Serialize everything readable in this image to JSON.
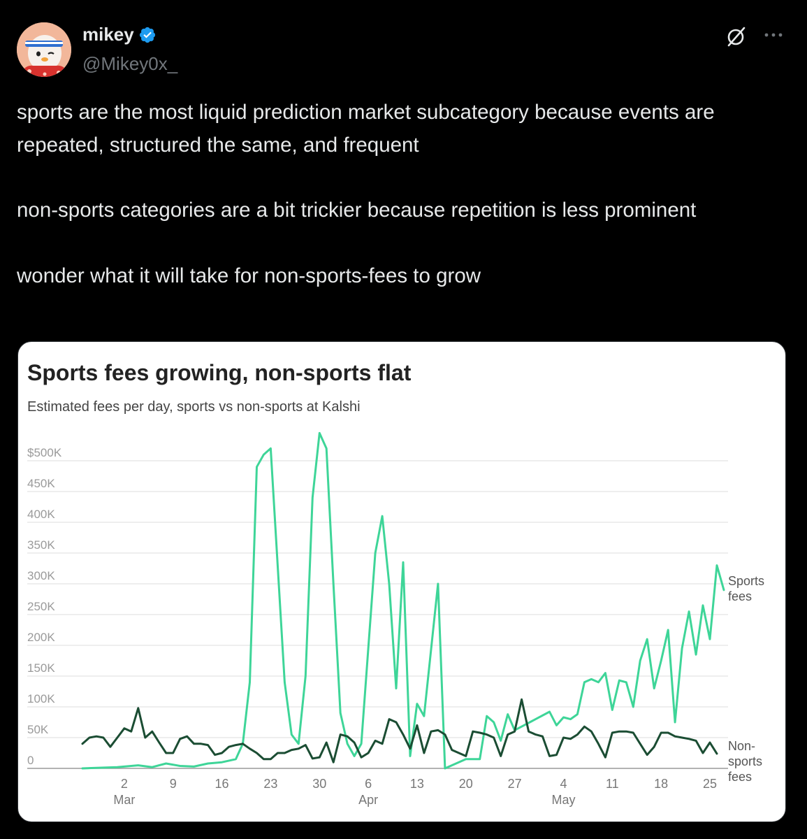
{
  "tweet": {
    "author_name": "mikey",
    "handle": "@Mikey0x_",
    "text": "sports are the most liquid prediction market subcategory because events are repeated, structured the same, and frequent\n\nnon-sports categories are a bit trickier because repetition is less prominent\n\nwonder what it will take for non-sports-fees to grow"
  },
  "icons": {
    "verified": "verified-badge-icon",
    "grok": "grok-icon",
    "more": "more-options-icon"
  },
  "colors": {
    "background": "#000000",
    "text": "#e7e9ea",
    "muted": "#71767b",
    "verified": "#1d9bf0",
    "sports": "#3ed598",
    "non_sports": "#1b4d33"
  },
  "chart_data": {
    "type": "line",
    "title": "Sports fees growing, non-sports flat",
    "subtitle": "Estimated fees per day, sports vs non-sports at Kalshi",
    "y_ticks": [
      "$500K",
      "450K",
      "400K",
      "350K",
      "300K",
      "250K",
      "200K",
      "150K",
      "100K",
      "50K",
      "0"
    ],
    "ylim": [
      0,
      500000
    ],
    "x_tick_labels": [
      {
        "day": "2",
        "month": "Mar"
      },
      {
        "day": "9",
        "month": ""
      },
      {
        "day": "16",
        "month": ""
      },
      {
        "day": "23",
        "month": ""
      },
      {
        "day": "30",
        "month": ""
      },
      {
        "day": "6",
        "month": "Apr"
      },
      {
        "day": "13",
        "month": ""
      },
      {
        "day": "20",
        "month": ""
      },
      {
        "day": "27",
        "month": ""
      },
      {
        "day": "4",
        "month": "May"
      },
      {
        "day": "11",
        "month": ""
      },
      {
        "day": "18",
        "month": ""
      },
      {
        "day": "25",
        "month": ""
      }
    ],
    "x_start": "2025-02-24",
    "x_end": "2025-05-26",
    "grid": true,
    "series": [
      {
        "name": "Sports fees",
        "label_lines": [
          "Sports",
          "fees"
        ],
        "color": "#3ed598",
        "points": [
          [
            "2025-02-24",
            0
          ],
          [
            "2025-03-01",
            2000
          ],
          [
            "2025-03-04",
            5000
          ],
          [
            "2025-03-06",
            2000
          ],
          [
            "2025-03-08",
            8000
          ],
          [
            "2025-03-10",
            4000
          ],
          [
            "2025-03-12",
            3000
          ],
          [
            "2025-03-14",
            8000
          ],
          [
            "2025-03-16",
            10000
          ],
          [
            "2025-03-18",
            15000
          ],
          [
            "2025-03-19",
            40000
          ],
          [
            "2025-03-20",
            140000
          ],
          [
            "2025-03-21",
            490000
          ],
          [
            "2025-03-22",
            510000
          ],
          [
            "2025-03-23",
            520000
          ],
          [
            "2025-03-24",
            330000
          ],
          [
            "2025-03-25",
            140000
          ],
          [
            "2025-03-26",
            55000
          ],
          [
            "2025-03-27",
            40000
          ],
          [
            "2025-03-28",
            150000
          ],
          [
            "2025-03-29",
            440000
          ],
          [
            "2025-03-30",
            545000
          ],
          [
            "2025-03-31",
            520000
          ],
          [
            "2025-04-01",
            300000
          ],
          [
            "2025-04-02",
            90000
          ],
          [
            "2025-04-03",
            40000
          ],
          [
            "2025-04-04",
            20000
          ],
          [
            "2025-04-05",
            40000
          ],
          [
            "2025-04-07",
            350000
          ],
          [
            "2025-04-08",
            410000
          ],
          [
            "2025-04-09",
            300000
          ],
          [
            "2025-04-10",
            130000
          ],
          [
            "2025-04-11",
            335000
          ],
          [
            "2025-04-12",
            20000
          ],
          [
            "2025-04-13",
            105000
          ],
          [
            "2025-04-14",
            85000
          ],
          [
            "2025-04-16",
            300000
          ],
          [
            "2025-04-17",
            0
          ],
          [
            "2025-04-18",
            5000
          ],
          [
            "2025-04-20",
            15000
          ],
          [
            "2025-04-22",
            15000
          ],
          [
            "2025-04-23",
            85000
          ],
          [
            "2025-04-24",
            75000
          ],
          [
            "2025-04-25",
            45000
          ],
          [
            "2025-04-26",
            88000
          ],
          [
            "2025-04-27",
            62000
          ],
          [
            "2025-04-30",
            80000
          ],
          [
            "2025-05-02",
            92000
          ],
          [
            "2025-05-03",
            70000
          ],
          [
            "2025-05-04",
            83000
          ],
          [
            "2025-05-05",
            80000
          ],
          [
            "2025-05-06",
            88000
          ],
          [
            "2025-05-07",
            140000
          ],
          [
            "2025-05-08",
            145000
          ],
          [
            "2025-05-09",
            140000
          ],
          [
            "2025-05-10",
            155000
          ],
          [
            "2025-05-11",
            95000
          ],
          [
            "2025-05-12",
            143000
          ],
          [
            "2025-05-13",
            140000
          ],
          [
            "2025-05-14",
            100000
          ],
          [
            "2025-05-15",
            175000
          ],
          [
            "2025-05-16",
            210000
          ],
          [
            "2025-05-17",
            130000
          ],
          [
            "2025-05-18",
            175000
          ],
          [
            "2025-05-19",
            225000
          ],
          [
            "2025-05-20",
            75000
          ],
          [
            "2025-05-21",
            195000
          ],
          [
            "2025-05-22",
            255000
          ],
          [
            "2025-05-23",
            185000
          ],
          [
            "2025-05-24",
            265000
          ],
          [
            "2025-05-25",
            210000
          ],
          [
            "2025-05-26",
            330000
          ],
          [
            "2025-05-27",
            290000
          ]
        ]
      },
      {
        "name": "Non-sports fees",
        "label_lines": [
          "Non-",
          "sports",
          "fees"
        ],
        "color": "#1b4d33",
        "points": [
          [
            "2025-02-24",
            40000
          ],
          [
            "2025-02-25",
            50000
          ],
          [
            "2025-02-26",
            52000
          ],
          [
            "2025-02-27",
            50000
          ],
          [
            "2025-02-28",
            35000
          ],
          [
            "2025-03-01",
            50000
          ],
          [
            "2025-03-02",
            65000
          ],
          [
            "2025-03-03",
            60000
          ],
          [
            "2025-03-04",
            98000
          ],
          [
            "2025-03-05",
            50000
          ],
          [
            "2025-03-06",
            60000
          ],
          [
            "2025-03-07",
            42000
          ],
          [
            "2025-03-08",
            25000
          ],
          [
            "2025-03-09",
            25000
          ],
          [
            "2025-03-10",
            48000
          ],
          [
            "2025-03-11",
            52000
          ],
          [
            "2025-03-12",
            40000
          ],
          [
            "2025-03-13",
            40000
          ],
          [
            "2025-03-14",
            38000
          ],
          [
            "2025-03-15",
            22000
          ],
          [
            "2025-03-16",
            25000
          ],
          [
            "2025-03-17",
            35000
          ],
          [
            "2025-03-18",
            38000
          ],
          [
            "2025-03-19",
            40000
          ],
          [
            "2025-03-20",
            32000
          ],
          [
            "2025-03-21",
            25000
          ],
          [
            "2025-03-22",
            15000
          ],
          [
            "2025-03-23",
            15000
          ],
          [
            "2025-03-24",
            25000
          ],
          [
            "2025-03-25",
            25000
          ],
          [
            "2025-03-26",
            30000
          ],
          [
            "2025-03-27",
            32000
          ],
          [
            "2025-03-28",
            38000
          ],
          [
            "2025-03-29",
            16000
          ],
          [
            "2025-03-30",
            18000
          ],
          [
            "2025-03-31",
            42000
          ],
          [
            "2025-04-01",
            10000
          ],
          [
            "2025-04-02",
            55000
          ],
          [
            "2025-04-03",
            52000
          ],
          [
            "2025-04-04",
            42000
          ],
          [
            "2025-04-05",
            18000
          ],
          [
            "2025-04-06",
            25000
          ],
          [
            "2025-04-07",
            45000
          ],
          [
            "2025-04-08",
            40000
          ],
          [
            "2025-04-09",
            80000
          ],
          [
            "2025-04-10",
            75000
          ],
          [
            "2025-04-11",
            55000
          ],
          [
            "2025-04-12",
            32000
          ],
          [
            "2025-04-13",
            70000
          ],
          [
            "2025-04-14",
            25000
          ],
          [
            "2025-04-15",
            60000
          ],
          [
            "2025-04-16",
            62000
          ],
          [
            "2025-04-17",
            55000
          ],
          [
            "2025-04-18",
            30000
          ],
          [
            "2025-04-19",
            25000
          ],
          [
            "2025-04-20",
            20000
          ],
          [
            "2025-04-21",
            60000
          ],
          [
            "2025-04-22",
            58000
          ],
          [
            "2025-04-23",
            55000
          ],
          [
            "2025-04-24",
            50000
          ],
          [
            "2025-04-25",
            20000
          ],
          [
            "2025-04-26",
            55000
          ],
          [
            "2025-04-27",
            60000
          ],
          [
            "2025-04-28",
            112000
          ],
          [
            "2025-04-29",
            60000
          ],
          [
            "2025-04-30",
            55000
          ],
          [
            "2025-05-01",
            52000
          ],
          [
            "2025-05-02",
            20000
          ],
          [
            "2025-05-03",
            22000
          ],
          [
            "2025-05-04",
            50000
          ],
          [
            "2025-05-05",
            48000
          ],
          [
            "2025-05-06",
            55000
          ],
          [
            "2025-05-07",
            68000
          ],
          [
            "2025-05-08",
            60000
          ],
          [
            "2025-05-09",
            40000
          ],
          [
            "2025-05-10",
            18000
          ],
          [
            "2025-05-11",
            58000
          ],
          [
            "2025-05-12",
            60000
          ],
          [
            "2025-05-13",
            60000
          ],
          [
            "2025-05-14",
            58000
          ],
          [
            "2025-05-15",
            40000
          ],
          [
            "2025-05-16",
            22000
          ],
          [
            "2025-05-17",
            35000
          ],
          [
            "2025-05-18",
            58000
          ],
          [
            "2025-05-19",
            58000
          ],
          [
            "2025-05-20",
            52000
          ],
          [
            "2025-05-21",
            50000
          ],
          [
            "2025-05-22",
            48000
          ],
          [
            "2025-05-23",
            45000
          ],
          [
            "2025-05-24",
            25000
          ],
          [
            "2025-05-25",
            42000
          ],
          [
            "2025-05-26",
            24000
          ]
        ]
      }
    ]
  }
}
